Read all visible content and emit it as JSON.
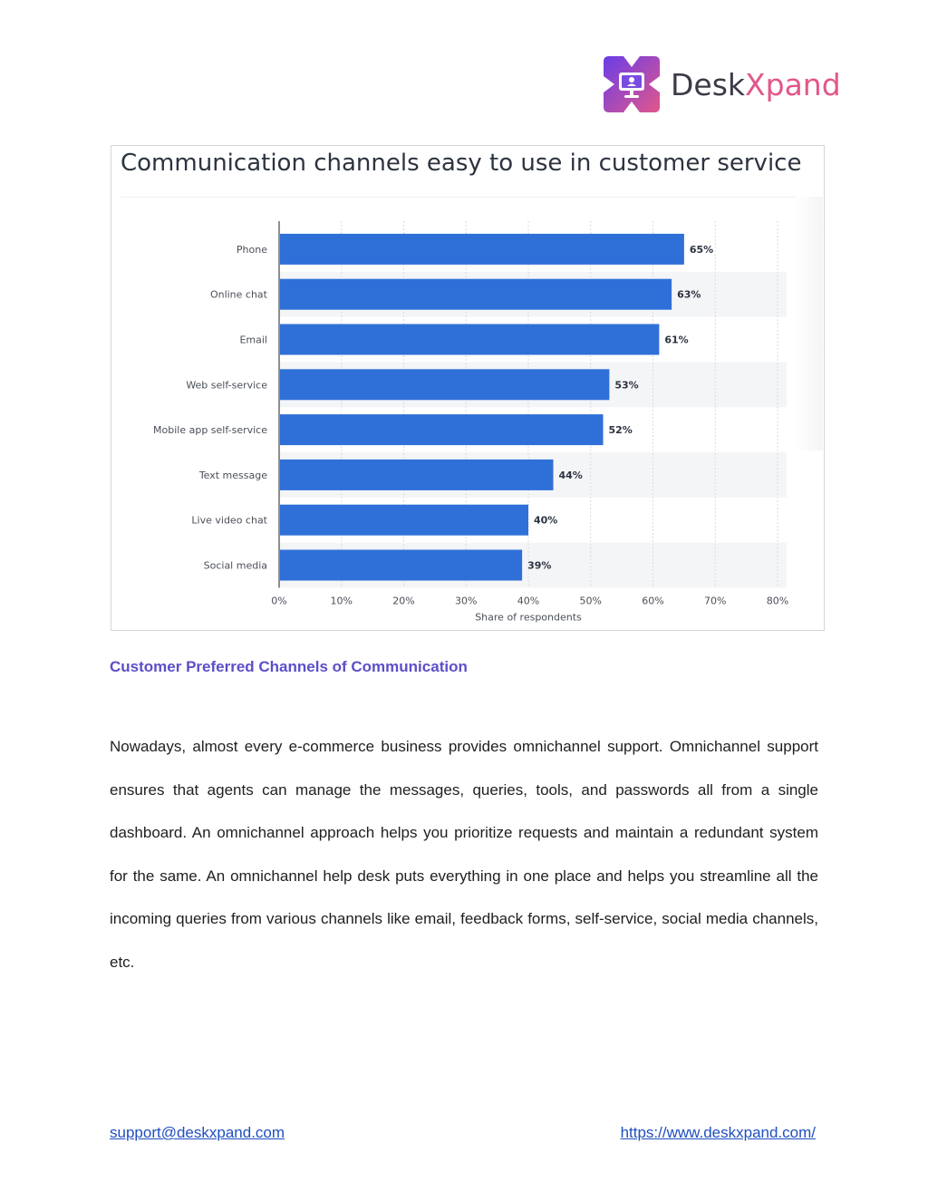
{
  "logo": {
    "text_main": "Desk",
    "text_accent": "Xpand",
    "colors": {
      "mark_start": "#6a3de8",
      "mark_end": "#e2578a",
      "accent": "#e2578a"
    }
  },
  "chart_data": {
    "type": "bar",
    "orientation": "horizontal",
    "title": "Communication channels easy to use in customer service",
    "categories": [
      "Phone",
      "Online chat",
      "Email",
      "Web self-service",
      "Mobile app self-service",
      "Text message",
      "Live video chat",
      "Social media"
    ],
    "values": [
      65,
      63,
      61,
      53,
      52,
      44,
      40,
      39
    ],
    "value_labels": [
      "65%",
      "63%",
      "61%",
      "53%",
      "52%",
      "44%",
      "40%",
      "39%"
    ],
    "xlabel": "Share of respondents",
    "ylabel": "",
    "xlim": [
      0,
      80
    ],
    "x_ticks": [
      "0%",
      "10%",
      "20%",
      "30%",
      "40%",
      "50%",
      "60%",
      "70%",
      "80%"
    ],
    "grid": true,
    "bar_color": "#2f6fd8"
  },
  "caption": "Customer Preferred Channels of Communication",
  "paragraph": "Nowadays, almost every e-commerce business provides omnichannel support. Omnichannel support ensures that agents can manage the messages, queries, tools, and passwords all from a single dashboard. An omnichannel approach helps you prioritize requests and maintain a redundant system for the same. An omnichannel help desk puts everything in one place and helps you streamline all the incoming queries from various channels like email, feedback forms, self-service, social media channels, etc.",
  "footer": {
    "email": "support@deskxpand.com",
    "website": "https://www.deskxpand.com/"
  }
}
